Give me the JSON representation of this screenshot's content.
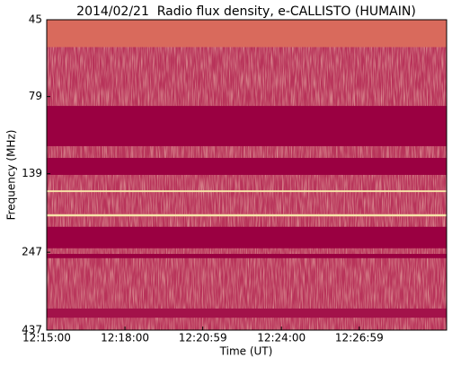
{
  "chart_data": {
    "type": "spectrogram",
    "title": "2014/02/21  Radio flux density, e-CALLISTO (HUMAIN)",
    "x_label": "Time (UT)",
    "y_label": "Frequency (MHz)",
    "xlim": [
      44100,
      45020
    ],
    "xticks": [
      {
        "value": 44100,
        "label": "12:15:00"
      },
      {
        "value": 44280,
        "label": "12:18:00"
      },
      {
        "value": 44459,
        "label": "12:20:59"
      },
      {
        "value": 44640,
        "label": "12:24:00"
      },
      {
        "value": 44819,
        "label": "12:26:59"
      }
    ],
    "ylim": [
      45,
      437
    ],
    "y_scale": "log",
    "y_inverted": true,
    "yticks": [
      45,
      79,
      139,
      247,
      437
    ],
    "background_color": "#b8335a",
    "bands": [
      {
        "from": 45,
        "to": 55,
        "color": "#d96a5c"
      },
      {
        "from": 84.6,
        "to": 113.6,
        "color": "#9a0041"
      },
      {
        "from": 123.8,
        "to": 140.2,
        "color": "#9a0041"
      },
      {
        "from": 157,
        "to": 159,
        "color": "#f7e3a8"
      },
      {
        "from": 187,
        "to": 190,
        "color": "#f7e3a8"
      },
      {
        "from": 205,
        "to": 240,
        "color": "#9a0041"
      },
      {
        "from": 250,
        "to": 258,
        "color": "#9a0041"
      },
      {
        "from": 373,
        "to": 399,
        "color": "#a3124a"
      }
    ]
  }
}
